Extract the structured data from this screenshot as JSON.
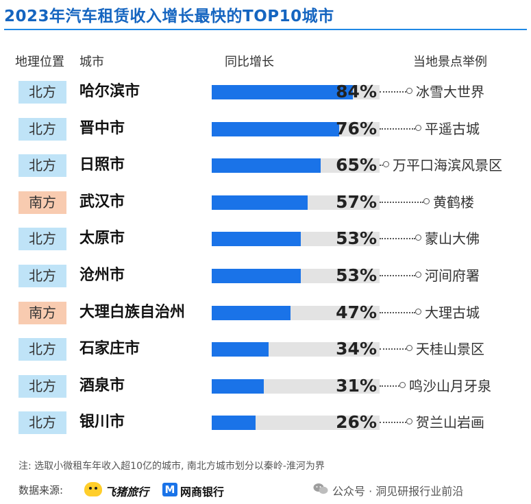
{
  "chart_data": {
    "type": "bar",
    "title": "2023年汽车租赁收入增长最快的TOP10城市",
    "headers": {
      "region": "地理位置",
      "city": "城市",
      "growth": "同比增长",
      "sight": "当地景点举例"
    },
    "categories": [
      "哈尔滨市",
      "晋中市",
      "日照市",
      "武汉市",
      "太原市",
      "沧州市",
      "大理白族自治州",
      "石家庄市",
      "酒泉市",
      "银川市"
    ],
    "series": [
      {
        "values": [
          84,
          76,
          65,
          57,
          53,
          53,
          47,
          34,
          31,
          26
        ]
      }
    ],
    "value_labels": [
      "84%",
      "76%",
      "65%",
      "57%",
      "53%",
      "53%",
      "47%",
      "34%",
      "31%",
      "26%"
    ],
    "regions": [
      "北方",
      "北方",
      "北方",
      "南方",
      "北方",
      "北方",
      "南方",
      "北方",
      "北方",
      "北方"
    ],
    "sights": [
      "冰雪大世界",
      "平遥古城",
      "万平口海滨风景区",
      "黄鹤楼",
      "蒙山大佛",
      "河间府署",
      "大理古城",
      "天桂山景区",
      "鸣沙山月牙泉",
      "贺兰山岩画"
    ],
    "xlim": [
      0,
      100
    ],
    "grid": false,
    "legend": "none"
  },
  "colors": {
    "bar": "#1a73e8",
    "track": "#e3e3e3",
    "north_badge": "#bfe3f7",
    "south_badge": "#f8cbb0",
    "title": "#1565c0"
  },
  "footer": {
    "note": "注: 选取小微租车年收入超10亿的城市, 南北方城市划分以秦岭-淮河为界",
    "source_label": "数据来源:",
    "source_fliggy": "飞猪旅行",
    "source_mybank": "网商银行",
    "source_mybank_mark": "M",
    "wechat": "公众号 · 洞见研报行业前沿"
  }
}
